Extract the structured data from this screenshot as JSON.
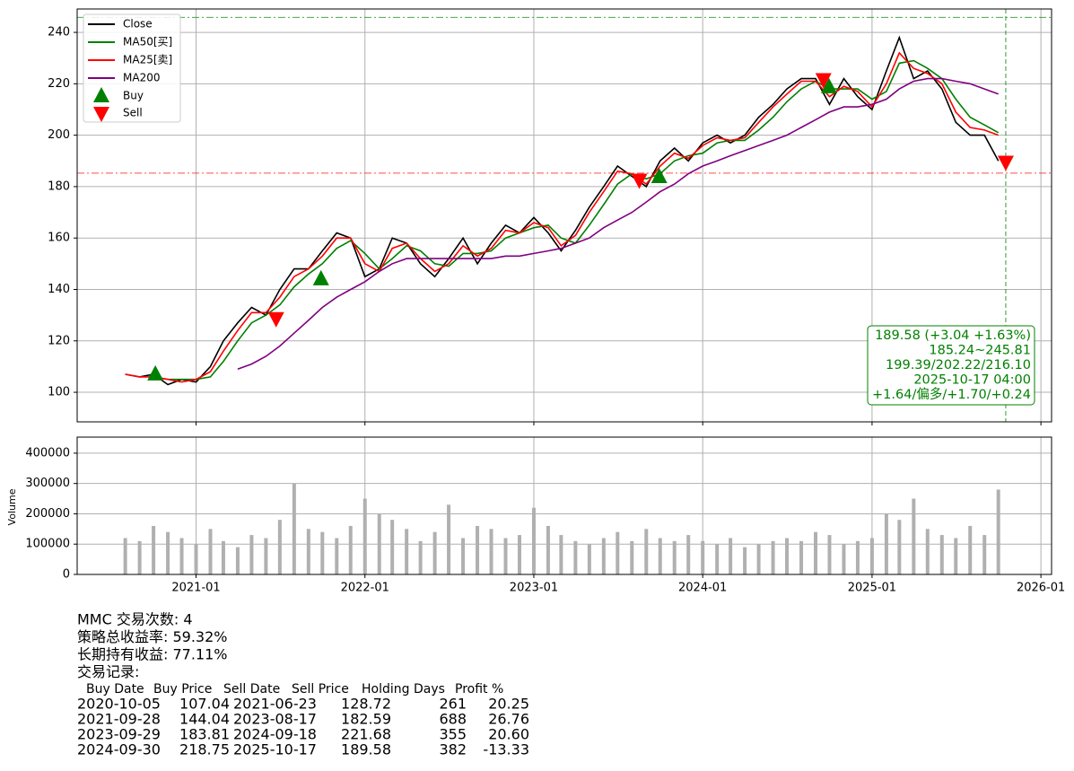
{
  "chart_data": [
    {
      "type": "line",
      "x": [
        "2020-08",
        "2020-09",
        "2020-10",
        "2020-11",
        "2020-12",
        "2021-01",
        "2021-02",
        "2021-03",
        "2021-04",
        "2021-05",
        "2021-06",
        "2021-07",
        "2021-08",
        "2021-09",
        "2021-10",
        "2021-11",
        "2021-12",
        "2022-01",
        "2022-02",
        "2022-03",
        "2022-04",
        "2022-05",
        "2022-06",
        "2022-07",
        "2022-08",
        "2022-09",
        "2022-10",
        "2022-11",
        "2022-12",
        "2023-01",
        "2023-02",
        "2023-03",
        "2023-04",
        "2023-05",
        "2023-06",
        "2023-07",
        "2023-08",
        "2023-09",
        "2023-10",
        "2023-11",
        "2023-12",
        "2024-01",
        "2024-02",
        "2024-03",
        "2024-04",
        "2024-05",
        "2024-06",
        "2024-07",
        "2024-08",
        "2024-09",
        "2024-10",
        "2024-11",
        "2024-12",
        "2025-01",
        "2025-02",
        "2025-03",
        "2025-04",
        "2025-05",
        "2025-06",
        "2025-07",
        "2025-08",
        "2025-09",
        "2025-10"
      ],
      "series": [
        {
          "name": "Close",
          "color": "#000000",
          "values": [
            107,
            106,
            107,
            103,
            105,
            104,
            110,
            120,
            127,
            133,
            130,
            140,
            148,
            148,
            155,
            162,
            160,
            145,
            148,
            160,
            158,
            150,
            145,
            152,
            160,
            150,
            158,
            165,
            162,
            168,
            162,
            155,
            163,
            172,
            180,
            188,
            184,
            180,
            190,
            195,
            190,
            197,
            200,
            197,
            200,
            207,
            212,
            218,
            222,
            222,
            212,
            222,
            215,
            210,
            225,
            238,
            222,
            225,
            218,
            205,
            200,
            200,
            190
          ]
        },
        {
          "name": "MA50[买]",
          "color": "#008000",
          "values": [
            null,
            null,
            106,
            105,
            105,
            105,
            106,
            112,
            120,
            127,
            130,
            134,
            141,
            146,
            150,
            156,
            159,
            154,
            148,
            152,
            157,
            155,
            150,
            149,
            154,
            154,
            155,
            160,
            162,
            164,
            165,
            160,
            158,
            165,
            173,
            181,
            185,
            183,
            185,
            190,
            192,
            193,
            197,
            198,
            198,
            202,
            207,
            213,
            218,
            221,
            218,
            218,
            218,
            214,
            217,
            228,
            229,
            226,
            222,
            214,
            207,
            204,
            201
          ]
        },
        {
          "name": "MA25[卖]",
          "color": "#ff0000",
          "values": [
            107,
            106,
            106,
            105,
            104,
            105,
            108,
            116,
            124,
            131,
            131,
            137,
            145,
            148,
            153,
            160,
            160,
            150,
            147,
            156,
            158,
            152,
            147,
            150,
            157,
            153,
            156,
            163,
            162,
            166,
            164,
            157,
            161,
            170,
            178,
            186,
            185,
            181,
            188,
            193,
            191,
            196,
            199,
            198,
            199,
            205,
            211,
            216,
            221,
            221,
            215,
            219,
            217,
            211,
            220,
            232,
            226,
            224,
            220,
            209,
            203,
            202,
            200
          ]
        },
        {
          "name": "MA200",
          "color": "#800080",
          "values": [
            null,
            null,
            null,
            null,
            null,
            null,
            null,
            null,
            109,
            111,
            114,
            118,
            123,
            128,
            133,
            137,
            140,
            143,
            147,
            150,
            152,
            152,
            152,
            152,
            152,
            152,
            152,
            153,
            153,
            154,
            155,
            156,
            158,
            160,
            164,
            167,
            170,
            174,
            178,
            181,
            185,
            188,
            190,
            192,
            194,
            196,
            198,
            200,
            203,
            206,
            209,
            211,
            211,
            212,
            214,
            218,
            221,
            222,
            222,
            221,
            220,
            218,
            216
          ]
        }
      ],
      "markers": [
        {
          "name": "Buy",
          "color": "#008000",
          "symbol": "triangle-up",
          "x": [
            "2020-10-05",
            "2021-09-28",
            "2023-09-29",
            "2024-09-30"
          ],
          "values": [
            107.04,
            144.04,
            183.81,
            218.75
          ]
        },
        {
          "name": "Sell",
          "color": "#ff0000",
          "symbol": "triangle-down",
          "x": [
            "2021-06-23",
            "2023-08-17",
            "2024-09-18",
            "2025-10-17"
          ],
          "values": [
            128.72,
            182.59,
            221.68,
            189.58
          ]
        }
      ],
      "hlines": [
        {
          "value": 245.81,
          "color": "#008000"
        },
        {
          "value": 185.24,
          "color": "#ff0000"
        }
      ],
      "vline": {
        "x": "2025-10-17",
        "color": "#008000"
      },
      "annotation": [
        "189.58 (+3.04 +1.63%)",
        "185.24~245.81",
        "199.39/202.22/216.10",
        "2025-10-17 04:00",
        "+1.64/偏多/+1.70/+0.24"
      ],
      "xlim": [
        "2020-04-19",
        "2026-01-24"
      ],
      "ylim": [
        88.5,
        249.1
      ],
      "yticks": [
        100,
        120,
        140,
        160,
        180,
        200,
        220,
        240
      ],
      "grid": true,
      "legend": "upper-left"
    },
    {
      "type": "bar",
      "y_label": "Volume",
      "x": [
        "2020-08",
        "2020-09",
        "2020-10",
        "2020-11",
        "2020-12",
        "2021-01",
        "2021-02",
        "2021-03",
        "2021-04",
        "2021-05",
        "2021-06",
        "2021-07",
        "2021-08",
        "2021-09",
        "2021-10",
        "2021-11",
        "2021-12",
        "2022-01",
        "2022-02",
        "2022-03",
        "2022-04",
        "2022-05",
        "2022-06",
        "2022-07",
        "2022-08",
        "2022-09",
        "2022-10",
        "2022-11",
        "2022-12",
        "2023-01",
        "2023-02",
        "2023-03",
        "2023-04",
        "2023-05",
        "2023-06",
        "2023-07",
        "2023-08",
        "2023-09",
        "2023-10",
        "2023-11",
        "2023-12",
        "2024-01",
        "2024-02",
        "2024-03",
        "2024-04",
        "2024-05",
        "2024-06",
        "2024-07",
        "2024-08",
        "2024-09",
        "2024-10",
        "2024-11",
        "2024-12",
        "2025-01",
        "2025-02",
        "2025-03",
        "2025-04",
        "2025-05",
        "2025-06",
        "2025-07",
        "2025-08",
        "2025-09",
        "2025-10"
      ],
      "values": [
        120000,
        110000,
        160000,
        140000,
        120000,
        100000,
        150000,
        110000,
        90000,
        130000,
        120000,
        180000,
        300000,
        150000,
        140000,
        120000,
        160000,
        250000,
        200000,
        180000,
        150000,
        110000,
        140000,
        230000,
        120000,
        160000,
        150000,
        120000,
        130000,
        220000,
        160000,
        130000,
        110000,
        100000,
        120000,
        140000,
        110000,
        150000,
        120000,
        110000,
        130000,
        110000,
        100000,
        120000,
        90000,
        100000,
        110000,
        120000,
        110000,
        140000,
        130000,
        100000,
        110000,
        120000,
        200000,
        180000,
        250000,
        150000,
        130000,
        120000,
        160000,
        130000,
        280000
      ],
      "color": "#b0b0b0",
      "xlim": [
        "2020-04-19",
        "2026-01-24"
      ],
      "xticks": [
        "2021-01",
        "2022-01",
        "2023-01",
        "2024-01",
        "2025-01",
        "2026-01"
      ],
      "ylim": [
        0,
        453000
      ],
      "yticks": [
        0,
        100000,
        200000,
        300000,
        400000
      ],
      "grid": true
    }
  ],
  "report": {
    "lines": [
      "MMC 交易次数: 4",
      "策略总收益率: 59.32%",
      "长期持有收益: 77.11%",
      "交易记录:"
    ],
    "table": {
      "header": [
        "Buy Date",
        "Buy Price",
        "Sell Date",
        "Sell Price",
        "Holding Days",
        "Profit %"
      ],
      "rows": [
        [
          "2020-10-05",
          "107.04",
          "2021-06-23",
          "128.72",
          "261",
          "20.25"
        ],
        [
          "2021-09-28",
          "144.04",
          "2023-08-17",
          "182.59",
          "688",
          "26.76"
        ],
        [
          "2023-09-29",
          "183.81",
          "2024-09-18",
          "221.68",
          "355",
          "20.60"
        ],
        [
          "2024-09-30",
          "218.75",
          "2025-10-17",
          "189.58",
          "382",
          "-13.33"
        ]
      ]
    }
  }
}
